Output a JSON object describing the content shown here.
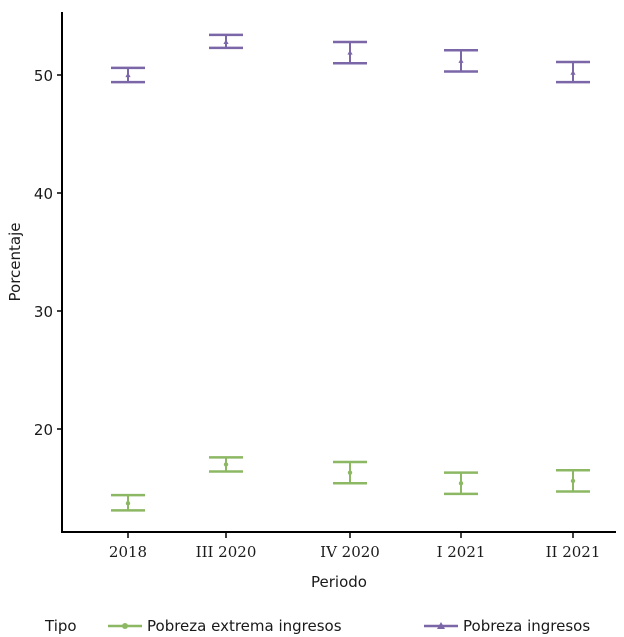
{
  "chart_data": {
    "type": "errorbar",
    "categories": [
      "2018",
      "III 2020",
      "IV 2020",
      "I 2021",
      "II 2021"
    ],
    "xlabel": "Periodo",
    "ylabel": "Porcentaje",
    "yticks": [
      20,
      30,
      40,
      50
    ],
    "ylim": [
      11,
      55
    ],
    "grid": false,
    "legend_position": "bottom",
    "legend_title": "Tipo",
    "series": [
      {
        "name": "Pobreza extrema ingresos",
        "color": "#8cb863",
        "marker": "circle",
        "values": [
          13.7,
          17.0,
          16.3,
          15.4,
          15.6
        ],
        "lower": [
          13.1,
          16.4,
          15.4,
          14.5,
          14.7
        ],
        "upper": [
          14.4,
          17.6,
          17.2,
          16.3,
          16.5
        ]
      },
      {
        "name": "Pobreza ingresos",
        "color": "#7b67a8",
        "marker": "triangle",
        "values": [
          50.0,
          52.8,
          51.9,
          51.2,
          50.2
        ],
        "lower": [
          49.4,
          52.3,
          51.0,
          50.3,
          49.4
        ],
        "upper": [
          50.6,
          53.4,
          52.8,
          52.1,
          51.1
        ]
      }
    ]
  }
}
